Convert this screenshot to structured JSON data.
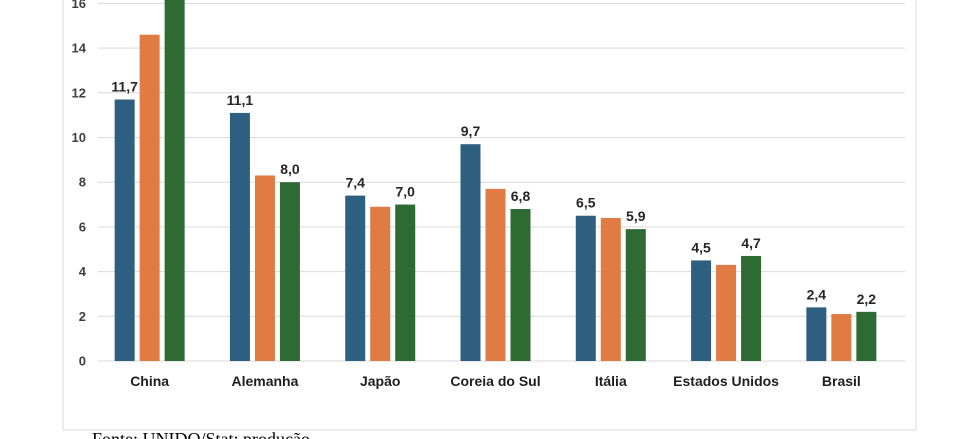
{
  "chart_data": {
    "type": "bar",
    "categories": [
      "China",
      "Alemanha",
      "Japão",
      "Coreia do Sul",
      "Itália",
      "Estados Unidos",
      "Brasil"
    ],
    "series": [
      {
        "values": [
          11.7,
          11.1,
          7.4,
          9.7,
          6.5,
          4.5,
          2.4
        ],
        "labels": [
          "11,7",
          "11,1",
          "7,4",
          "9,7",
          "6,5",
          "4,5",
          "2,4"
        ],
        "color": "#2e5f80"
      },
      {
        "values": [
          14.6,
          8.3,
          6.9,
          7.7,
          6.4,
          4.3,
          2.1
        ],
        "labels": [
          "",
          "",
          "",
          "",
          "",
          "",
          ""
        ],
        "color": "#e07b43"
      },
      {
        "values": [
          16.8,
          8.0,
          7.0,
          6.8,
          5.9,
          4.7,
          2.2
        ],
        "labels": [
          "",
          "8,0",
          "7,0",
          "6,8",
          "5,9",
          "4,7",
          "2,2"
        ],
        "color": "#2e6b33"
      }
    ],
    "yticks": [
      "0",
      "2",
      "4",
      "6",
      "8",
      "10",
      "12",
      "14",
      "16"
    ],
    "ylim": [
      0,
      16
    ],
    "grid": true,
    "title": "",
    "xlabel": "",
    "ylabel": ""
  },
  "source_note": "Fonte: UNIDO/Stat; produção"
}
